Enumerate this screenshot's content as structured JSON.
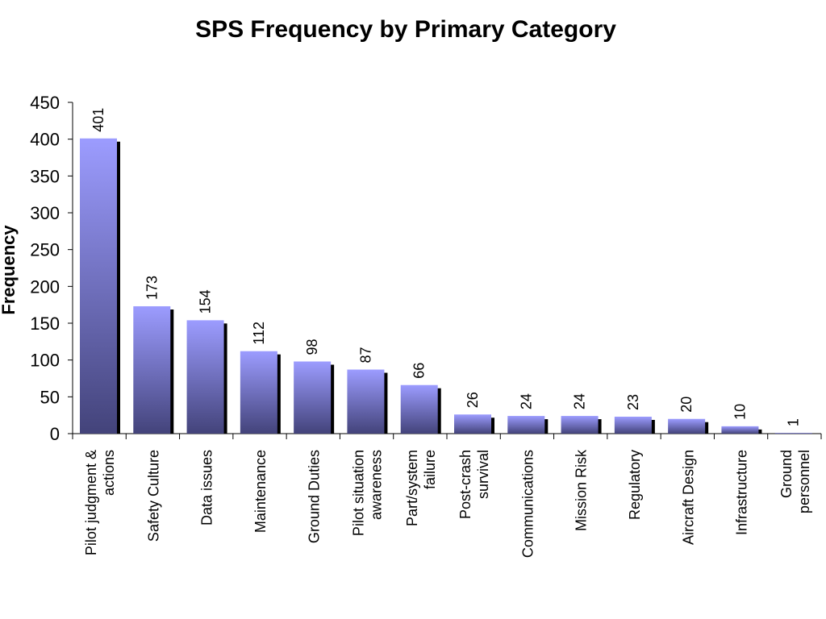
{
  "chart_data": {
    "type": "bar",
    "title": "SPS Frequency by Primary Category",
    "xlabel": "",
    "ylabel": "Frequency",
    "ylim": [
      0,
      450
    ],
    "yticks": [
      0,
      50,
      100,
      150,
      200,
      250,
      300,
      350,
      400,
      450
    ],
    "categories": [
      [
        "Pilot judgment &",
        "actions"
      ],
      [
        "Safety Culture"
      ],
      [
        "Data issues"
      ],
      [
        "Maintenance"
      ],
      [
        "Ground Duties"
      ],
      [
        "Pilot situation",
        "awareness"
      ],
      [
        "Part/system",
        "failure"
      ],
      [
        "Post-crash",
        "survival"
      ],
      [
        "Communications"
      ],
      [
        "Mission Risk"
      ],
      [
        "Regulatory"
      ],
      [
        "Aircraft Design"
      ],
      [
        "Infrastructure"
      ],
      [
        "Ground",
        "personnel"
      ]
    ],
    "values": [
      401,
      173,
      154,
      112,
      98,
      87,
      66,
      26,
      24,
      24,
      23,
      20,
      10,
      1
    ],
    "grid": false,
    "legend": "none",
    "colors": {
      "bar_top": "#9c9cff",
      "bar_bottom": "#43437a",
      "shadow": "#000000"
    }
  }
}
